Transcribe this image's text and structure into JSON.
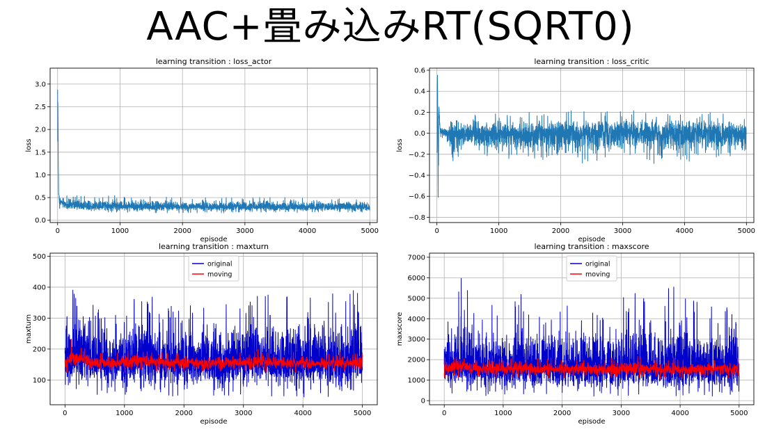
{
  "headline": "AAC+畳み込みRT(SQRT0)",
  "chart_data": [
    {
      "type": "line",
      "title": "learning transition : loss_actor",
      "xlabel": "episode",
      "ylabel": "loss",
      "xlim": [
        -120,
        5120
      ],
      "ylim": [
        -0.05,
        3.35
      ],
      "xticks": [
        0,
        1000,
        2000,
        3000,
        4000,
        5000
      ],
      "yticks": [
        0.0,
        0.5,
        1.0,
        1.5,
        2.0,
        2.5,
        3.0
      ],
      "ytick_labels": [
        "0.0",
        "0.5",
        "1.0",
        "1.5",
        "2.0",
        "2.5",
        "3.0"
      ],
      "grid": true,
      "legend": null,
      "series": [
        {
          "color": "#1f77b4",
          "x": [
            0,
            8,
            16,
            30,
            60,
            100,
            200,
            400,
            600,
            800,
            1000,
            1300,
            1600,
            2000,
            2400,
            2800,
            3200,
            3600,
            4000,
            4400,
            4800,
            5000
          ],
          "y": [
            3.2,
            2.0,
            0.6,
            0.45,
            0.4,
            0.35,
            0.33,
            0.32,
            0.32,
            0.31,
            0.31,
            0.31,
            0.3,
            0.3,
            0.3,
            0.3,
            0.3,
            0.3,
            0.29,
            0.29,
            0.29,
            0.29
          ],
          "band_low": [
            0.3,
            0.3,
            0.3,
            0.25,
            0.22,
            0.2,
            0.18,
            0.17,
            0.17,
            0.17,
            0.17,
            0.16,
            0.16,
            0.16,
            0.16,
            0.16,
            0.16,
            0.16,
            0.16,
            0.16,
            0.16,
            0.16
          ],
          "band_high": [
            3.2,
            2.0,
            0.65,
            0.6,
            0.55,
            0.6,
            0.55,
            0.55,
            0.55,
            0.55,
            0.55,
            0.55,
            0.52,
            0.5,
            0.52,
            0.5,
            0.52,
            0.5,
            0.5,
            0.5,
            0.5,
            0.5
          ]
        }
      ]
    },
    {
      "type": "line",
      "title": "learning transition : loss_critic",
      "xlabel": "episode",
      "ylabel": "loss",
      "xlim": [
        -120,
        5120
      ],
      "ylim": [
        -0.85,
        0.62
      ],
      "xticks": [
        0,
        1000,
        2000,
        3000,
        4000,
        5000
      ],
      "yticks": [
        -0.8,
        -0.6,
        -0.4,
        -0.2,
        0.0,
        0.2,
        0.4,
        0.6
      ],
      "ytick_labels": [
        "−0.8",
        "−0.6",
        "−0.4",
        "−0.2",
        "0.0",
        "0.2",
        "0.4",
        "0.6"
      ],
      "grid": true,
      "legend": null,
      "series": [
        {
          "color": "#1f77b4",
          "x": [
            0,
            10,
            20,
            30,
            50,
            80,
            150,
            250,
            400,
            600,
            1000,
            1400,
            2000,
            2500,
            3000,
            3500,
            4000,
            4500,
            5000
          ],
          "y": [
            0.0,
            0.55,
            -0.6,
            0.3,
            0.05,
            0.02,
            0.0,
            0.0,
            0.0,
            0.0,
            0.0,
            0.0,
            0.0,
            0.0,
            0.0,
            0.0,
            0.0,
            0.0,
            0.0
          ],
          "band_low": [
            -0.78,
            -0.78,
            -0.65,
            -0.1,
            -0.05,
            -0.05,
            -0.05,
            -0.53,
            -0.15,
            -0.2,
            -0.25,
            -0.28,
            -0.3,
            -0.28,
            -0.25,
            -0.3,
            -0.28,
            -0.25,
            -0.2
          ],
          "band_high": [
            0.57,
            0.57,
            0.35,
            0.3,
            0.06,
            0.06,
            0.08,
            0.15,
            0.15,
            0.18,
            0.2,
            0.2,
            0.24,
            0.2,
            0.22,
            0.22,
            0.2,
            0.2,
            0.15
          ]
        }
      ]
    },
    {
      "type": "line",
      "title": "learning transition : maxturn",
      "xlabel": "episode",
      "ylabel": "maxturn",
      "xlim": [
        -250,
        5250
      ],
      "ylim": [
        20,
        510
      ],
      "xticks": [
        0,
        1000,
        2000,
        3000,
        4000,
        5000
      ],
      "yticks": [
        100,
        200,
        300,
        400,
        500
      ],
      "ytick_labels": [
        "100",
        "200",
        "300",
        "400",
        "500"
      ],
      "grid": true,
      "legend": "upper center",
      "series": [
        {
          "name": "original",
          "color": "#0000cc",
          "x": [
            0,
            100,
            200,
            300,
            500,
            800,
            1000,
            1300,
            1600,
            2000,
            2400,
            2800,
            3200,
            3600,
            4000,
            4400,
            4800,
            4950,
            5000
          ],
          "y": [
            150,
            160,
            165,
            165,
            155,
            155,
            160,
            158,
            155,
            155,
            155,
            155,
            155,
            155,
            155,
            155,
            155,
            155,
            155
          ],
          "band_low": [
            60,
            55,
            55,
            45,
            45,
            45,
            50,
            45,
            45,
            45,
            45,
            45,
            45,
            45,
            45,
            45,
            45,
            40,
            40
          ],
          "band_high": [
            320,
            400,
            400,
            490,
            340,
            330,
            330,
            405,
            350,
            330,
            380,
            340,
            405,
            350,
            435,
            380,
            380,
            470,
            260
          ]
        },
        {
          "name": "moving",
          "color": "#ff0000",
          "x": [
            0,
            100,
            200,
            300,
            500,
            800,
            1000,
            1300,
            1600,
            2000,
            2400,
            2800,
            3200,
            3600,
            4000,
            4400,
            4800,
            5000
          ],
          "y": [
            150,
            170,
            165,
            170,
            155,
            155,
            160,
            160,
            155,
            155,
            155,
            155,
            160,
            155,
            155,
            155,
            155,
            155
          ],
          "band_low": [
            120,
            130,
            130,
            130,
            125,
            125,
            125,
            125,
            125,
            125,
            125,
            125,
            125,
            125,
            125,
            125,
            125,
            120
          ],
          "band_high": [
            190,
            240,
            210,
            215,
            190,
            190,
            195,
            200,
            190,
            190,
            190,
            190,
            200,
            190,
            195,
            190,
            195,
            230
          ]
        }
      ]
    },
    {
      "type": "line",
      "title": "learning transition : maxscore",
      "xlabel": "episode",
      "ylabel": "maxscore",
      "xlim": [
        -250,
        5250
      ],
      "ylim": [
        -200,
        7200
      ],
      "xticks": [
        0,
        1000,
        2000,
        3000,
        4000,
        5000
      ],
      "yticks": [
        0,
        1000,
        2000,
        3000,
        4000,
        5000,
        6000,
        7000
      ],
      "ytick_labels": [
        "0",
        "1000",
        "2000",
        "3000",
        "4000",
        "5000",
        "6000",
        "7000"
      ],
      "grid": true,
      "legend": "upper center",
      "series": [
        {
          "name": "original",
          "color": "#0000cc",
          "x": [
            0,
            100,
            200,
            300,
            500,
            800,
            1000,
            1300,
            1600,
            2000,
            2400,
            2800,
            3200,
            3600,
            4000,
            4400,
            4800,
            4950,
            5000
          ],
          "y": [
            1500,
            1600,
            1650,
            1650,
            1550,
            1550,
            1550,
            1550,
            1500,
            1500,
            1500,
            1500,
            1500,
            1500,
            1500,
            1500,
            1500,
            1500,
            1500
          ],
          "band_low": [
            300,
            200,
            200,
            200,
            200,
            200,
            200,
            200,
            200,
            200,
            200,
            200,
            200,
            200,
            200,
            200,
            200,
            200,
            300
          ],
          "band_high": [
            3900,
            5500,
            5500,
            6850,
            4500,
            4800,
            4600,
            5300,
            4500,
            4900,
            4500,
            4700,
            5300,
            4800,
            6200,
            4800,
            4600,
            6600,
            3000
          ]
        },
        {
          "name": "moving",
          "color": "#ff0000",
          "x": [
            0,
            100,
            200,
            300,
            500,
            800,
            1000,
            1300,
            1600,
            2000,
            2400,
            2800,
            3200,
            3600,
            4000,
            4400,
            4800,
            5000
          ],
          "y": [
            1500,
            1700,
            1650,
            1700,
            1550,
            1550,
            1550,
            1600,
            1550,
            1550,
            1550,
            1500,
            1600,
            1550,
            1500,
            1550,
            1500,
            1500
          ],
          "band_low": [
            1000,
            1100,
            1100,
            1100,
            1050,
            1050,
            1050,
            1050,
            1050,
            1050,
            1050,
            1050,
            1050,
            1050,
            1050,
            1050,
            1050,
            1000
          ],
          "band_high": [
            2000,
            2600,
            2300,
            2400,
            2100,
            2100,
            2100,
            2200,
            2100,
            2100,
            2100,
            2100,
            2200,
            2100,
            2100,
            2100,
            2100,
            2100
          ]
        }
      ]
    }
  ]
}
